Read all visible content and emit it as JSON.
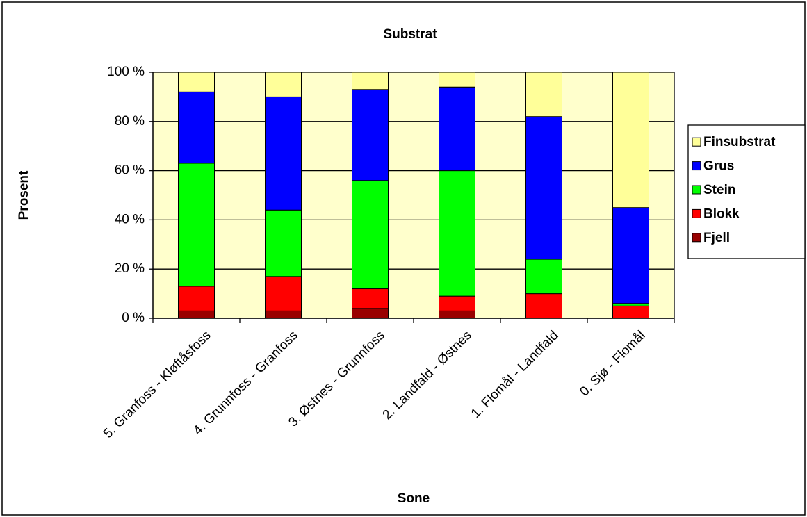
{
  "chart_data": {
    "type": "stacked-bar",
    "title": "Substrat",
    "x_label": "Sone",
    "y_label": "Prosent",
    "categories": [
      "5. Granfoss - Kløftåsfoss",
      "4. Grunnfoss - Granfoss",
      "3. Østnes - Grunnfoss",
      "2. Landfald - Østnes",
      "1. Flomål - Landfald",
      "0. Sjø - Flomål"
    ],
    "series": [
      {
        "name": "Fjell",
        "color": "#990000",
        "values": [
          3,
          3,
          4,
          3,
          0,
          0
        ]
      },
      {
        "name": "Blokk",
        "color": "#ff0000",
        "values": [
          10,
          14,
          8,
          6,
          10,
          5
        ]
      },
      {
        "name": "Stein",
        "color": "#00ff00",
        "values": [
          50,
          27,
          44,
          51,
          14,
          1
        ]
      },
      {
        "name": "Grus",
        "color": "#0000ff",
        "values": [
          29,
          46,
          37,
          34,
          58,
          39
        ]
      },
      {
        "name": "Finsubstrat",
        "color": "#ffff99",
        "values": [
          8,
          10,
          7,
          6,
          18,
          55
        ]
      }
    ],
    "ylim": [
      0,
      100
    ],
    "yticks": [
      {
        "value": 0,
        "label": "0 %"
      },
      {
        "value": 20,
        "label": "20 %"
      },
      {
        "value": 40,
        "label": "40 %"
      },
      {
        "value": 60,
        "label": "60 %"
      },
      {
        "value": 80,
        "label": "80 %"
      },
      {
        "value": 100,
        "label": "100 %"
      }
    ],
    "grid": true,
    "legend": "right",
    "plot_background": "#ffffcc"
  }
}
